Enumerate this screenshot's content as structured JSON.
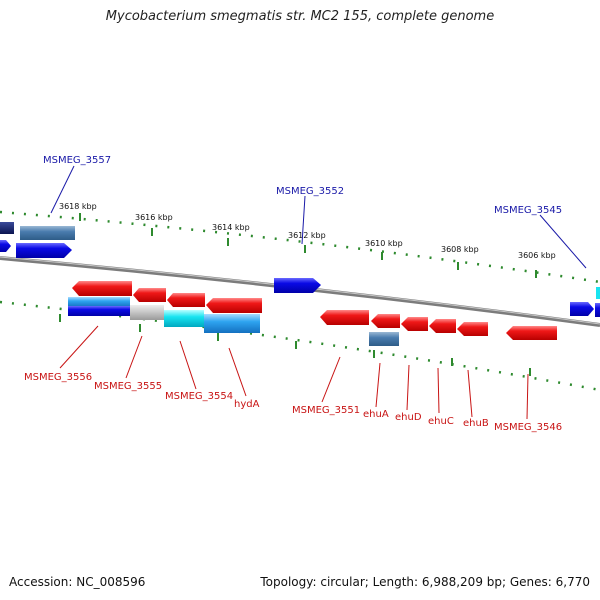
{
  "title": "Mycobacterium smegmatis str. MC2 155, complete genome",
  "footer": {
    "accession": "Accession: NC_008596",
    "topology": "Topology: circular; Length: 6,988,209 bp; Genes: 6,770"
  },
  "colors": {
    "forward_label": "#1a1aa8",
    "reverse_label": "#c81414",
    "tick": "#2e8a2e",
    "backbone": "#8c8c8c"
  },
  "scale_labels": [
    {
      "text": "3618 kbp",
      "pos_kbp": 3618
    },
    {
      "text": "3616 kbp",
      "pos_kbp": 3616
    },
    {
      "text": "3614 kbp",
      "pos_kbp": 3614
    },
    {
      "text": "3612 kbp",
      "pos_kbp": 3612
    },
    {
      "text": "3610 kbp",
      "pos_kbp": 3610
    },
    {
      "text": "3608 kbp",
      "pos_kbp": 3608
    },
    {
      "text": "3606 kbp",
      "pos_kbp": 3606
    }
  ],
  "forward_labels": [
    {
      "text": "MSMEG_3557",
      "gene": "MSMEG_3557"
    },
    {
      "text": "MSMEG_3552",
      "gene": "MSMEG_3552"
    },
    {
      "text": "MSMEG_3545",
      "gene": "MSMEG_3545"
    }
  ],
  "reverse_labels": [
    {
      "text": "MSMEG_3556",
      "gene": "MSMEG_3556"
    },
    {
      "text": "MSMEG_3555",
      "gene": "MSMEG_3555"
    },
    {
      "text": "MSMEG_3554",
      "gene": "MSMEG_3554"
    },
    {
      "text": "hydA",
      "gene": "hydA"
    },
    {
      "text": "MSMEG_3551",
      "gene": "MSMEG_3551"
    },
    {
      "text": "ehuA",
      "gene": "ehuA"
    },
    {
      "text": "ehuD",
      "gene": "ehuD"
    },
    {
      "text": "ehuC",
      "gene": "ehuC"
    },
    {
      "text": "ehuB",
      "gene": "ehuB"
    },
    {
      "text": "MSMEG_3546",
      "gene": "MSMEG_3546"
    }
  ]
}
